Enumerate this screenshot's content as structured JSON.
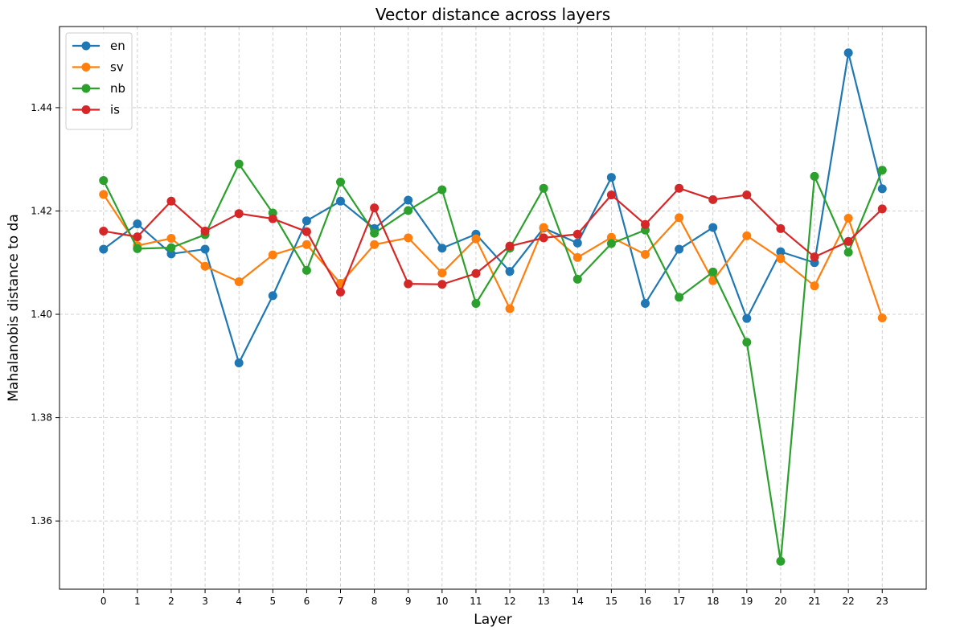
{
  "chart_data": {
    "type": "line",
    "title": "Vector distance across layers",
    "xlabel": "Layer",
    "ylabel": "Mahalanobis distance to da",
    "x": [
      0,
      1,
      2,
      3,
      4,
      5,
      6,
      7,
      8,
      9,
      10,
      11,
      12,
      13,
      14,
      15,
      16,
      17,
      18,
      19,
      20,
      21,
      22,
      23
    ],
    "xticks": [
      "0",
      "1",
      "2",
      "3",
      "4",
      "5",
      "6",
      "7",
      "8",
      "9",
      "10",
      "11",
      "12",
      "13",
      "14",
      "15",
      "16",
      "17",
      "18",
      "19",
      "20",
      "21",
      "22",
      "23"
    ],
    "yticks": [
      1.36,
      1.38,
      1.4,
      1.42,
      1.44
    ],
    "ytick_labels": [
      "1.36",
      "1.38",
      "1.40",
      "1.42",
      "1.44"
    ],
    "ylim": [
      1.3468,
      1.4557
    ],
    "xlim": [
      -1.3,
      24.3
    ],
    "grid": true,
    "legend_position": "top-left",
    "series": [
      {
        "name": "en",
        "color": "#1f77b4",
        "values": [
          1.4126,
          1.4175,
          1.4117,
          1.4126,
          1.3906,
          1.4036,
          1.4181,
          1.4219,
          1.4166,
          1.4221,
          1.4128,
          1.4155,
          1.4083,
          1.4167,
          1.4138,
          1.4265,
          1.4021,
          1.4126,
          1.4168,
          1.3992,
          1.4121,
          1.41,
          1.4506,
          1.4243
        ]
      },
      {
        "name": "sv",
        "color": "#ff7f0e",
        "values": [
          1.4232,
          1.4133,
          1.4147,
          1.4093,
          1.4063,
          1.4115,
          1.4135,
          1.406,
          1.4135,
          1.4148,
          1.408,
          1.4146,
          1.4011,
          1.4168,
          1.411,
          1.4149,
          1.4116,
          1.4187,
          1.4065,
          1.4152,
          1.4108,
          1.4055,
          1.4186,
          1.3993
        ]
      },
      {
        "name": "nb",
        "color": "#2ca02c",
        "values": [
          1.4259,
          1.4127,
          1.4129,
          1.4154,
          1.4291,
          1.4196,
          1.4085,
          1.4256,
          1.4157,
          1.4201,
          1.4241,
          1.4021,
          1.4128,
          1.4244,
          1.4068,
          1.4137,
          1.4163,
          1.4033,
          1.4082,
          1.3946,
          1.3522,
          1.4267,
          1.412,
          1.4279
        ]
      },
      {
        "name": "is",
        "color": "#d62728",
        "values": [
          1.4161,
          1.415,
          1.4219,
          1.4161,
          1.4195,
          1.4185,
          1.416,
          1.4043,
          1.4206,
          1.4059,
          1.4058,
          1.4079,
          1.4132,
          1.4148,
          1.4155,
          1.4231,
          1.4174,
          1.4244,
          1.4222,
          1.4231,
          1.4166,
          1.4111,
          1.4141,
          1.4204
        ]
      }
    ]
  }
}
